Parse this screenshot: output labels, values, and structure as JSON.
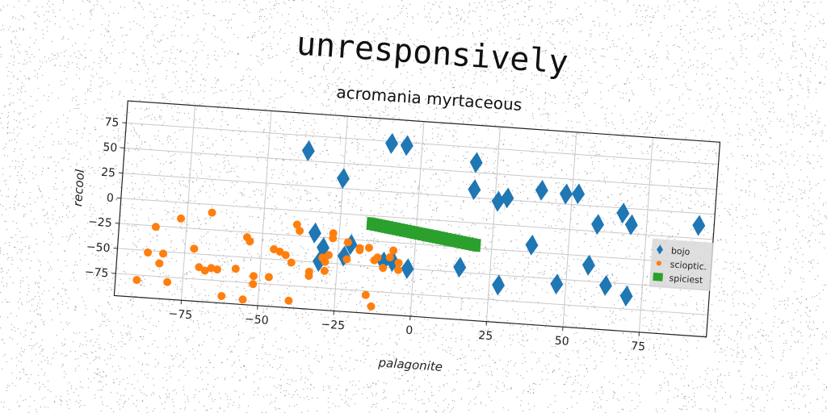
{
  "chart_data": {
    "type": "scatter",
    "title": "unresponsively",
    "subtitle": "acromania myrtaceous",
    "xlabel": "palagonite",
    "ylabel": "recool",
    "xlim": [
      -97,
      97
    ],
    "ylim": [
      -97,
      97
    ],
    "xticks": [
      -75,
      -50,
      -25,
      0,
      25,
      50,
      75
    ],
    "yticks": [
      75,
      50,
      25,
      0,
      -25,
      -50,
      -75
    ],
    "grid": true,
    "legend_position": "right",
    "colors": {
      "bojo": "#1f77b4",
      "sciopticus": "#ff7f0e",
      "spiciest": "#2ca02c"
    },
    "series": [
      {
        "name": "bojo",
        "marker": "diamond",
        "points": [
          [
            -37,
            60
          ],
          [
            -10,
            73
          ],
          [
            -5,
            72
          ],
          [
            -25,
            35
          ],
          [
            18,
            60
          ],
          [
            18,
            33
          ],
          [
            26,
            23
          ],
          [
            29,
            27
          ],
          [
            40,
            37
          ],
          [
            48,
            35
          ],
          [
            52,
            36
          ],
          [
            59,
            7
          ],
          [
            67,
            20
          ],
          [
            70,
            9
          ],
          [
            92,
            13
          ],
          [
            38,
            -18
          ],
          [
            -33,
            -21
          ],
          [
            -30,
            -35
          ],
          [
            -31,
            -49
          ],
          [
            -23,
            -42
          ],
          [
            -21,
            -30
          ],
          [
            -10,
            -45
          ],
          [
            -7,
            -44
          ],
          [
            -2,
            -50
          ],
          [
            15,
            -45
          ],
          [
            28,
            -60
          ],
          [
            47,
            -55
          ],
          [
            57,
            -34
          ],
          [
            63,
            -53
          ],
          [
            70,
            -62
          ]
        ]
      },
      {
        "name": "scioptic.",
        "marker": "circle",
        "points": [
          [
            -90,
            -80
          ],
          [
            -85,
            -26
          ],
          [
            -87,
            -52
          ],
          [
            -82,
            -52
          ],
          [
            -83,
            -62
          ],
          [
            -80,
            -80
          ],
          [
            -77,
            -16
          ],
          [
            -72,
            -45
          ],
          [
            -70,
            -63
          ],
          [
            -68,
            -66
          ],
          [
            -66,
            -63
          ],
          [
            -64,
            -64
          ],
          [
            -67,
            -8
          ],
          [
            -62,
            -90
          ],
          [
            -58,
            -62
          ],
          [
            -55,
            -30
          ],
          [
            -55,
            -92
          ],
          [
            -54,
            -34
          ],
          [
            -52,
            -68
          ],
          [
            -52,
            -76
          ],
          [
            -47,
            -68
          ],
          [
            -46,
            -40
          ],
          [
            -44,
            -42
          ],
          [
            -42,
            -45
          ],
          [
            -40,
            -52
          ],
          [
            -39,
            -14
          ],
          [
            -38,
            -20
          ],
          [
            -40,
            -90
          ],
          [
            -34,
            -64
          ],
          [
            -34,
            -60
          ],
          [
            -30,
            -45
          ],
          [
            -28,
            -42
          ],
          [
            -29,
            -58
          ],
          [
            -29,
            -49
          ],
          [
            -27,
            -20
          ],
          [
            -27,
            -25
          ],
          [
            -22,
            -45
          ],
          [
            -18,
            -33
          ],
          [
            -15,
            -32
          ],
          [
            -13,
            -44
          ],
          [
            -12,
            -41
          ],
          [
            -10,
            -51
          ],
          [
            -8,
            -40
          ],
          [
            -7,
            -33
          ],
          [
            -5,
            -45
          ],
          [
            -5,
            -52
          ],
          [
            -15,
            -79
          ],
          [
            -13,
            -90
          ],
          [
            -18,
            -35
          ],
          [
            -22,
            -28
          ]
        ]
      },
      {
        "name": "spiciest",
        "marker": "square",
        "line": {
          "x_start": -15,
          "y_start": -8,
          "x_end": 20,
          "y_end": -22,
          "count": 30
        }
      }
    ]
  }
}
